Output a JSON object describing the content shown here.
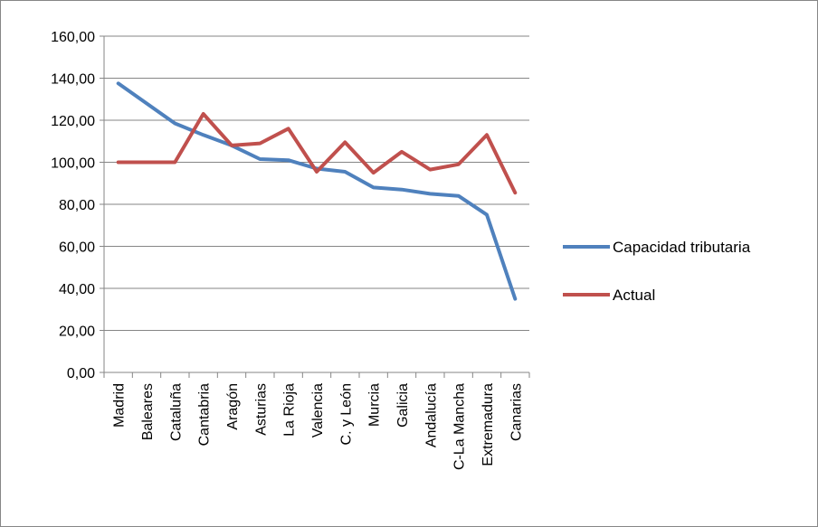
{
  "chart_data": {
    "type": "line",
    "title": "",
    "xlabel": "",
    "ylabel": "",
    "ylim": [
      0,
      160
    ],
    "y_ticks": [
      "0,00",
      "20,00",
      "40,00",
      "60,00",
      "80,00",
      "100,00",
      "120,00",
      "140,00",
      "160,00"
    ],
    "categories": [
      "Madrid",
      "Baleares",
      "Cataluña",
      "Cantabria",
      "Aragón",
      "Asturias",
      "La Rioja",
      "Valencia",
      "C. y León",
      "Murcia",
      "Galicia",
      "Andalucía",
      "C-La Mancha",
      "Extremadura",
      "Canarias"
    ],
    "grid": "horizontal",
    "legend_position": "right",
    "series": [
      {
        "name": "Capacidad tributaria",
        "color": "#4f81bd",
        "values": [
          137.5,
          128,
          118.5,
          113,
          108,
          101.5,
          101,
          97,
          95.5,
          88,
          87,
          85,
          84,
          75,
          35
        ]
      },
      {
        "name": "Actual",
        "color": "#c0504d",
        "values": [
          100,
          100,
          100,
          123,
          108,
          109,
          116,
          95.5,
          109.5,
          95,
          105,
          96.5,
          99,
          113,
          85.5
        ]
      }
    ]
  }
}
